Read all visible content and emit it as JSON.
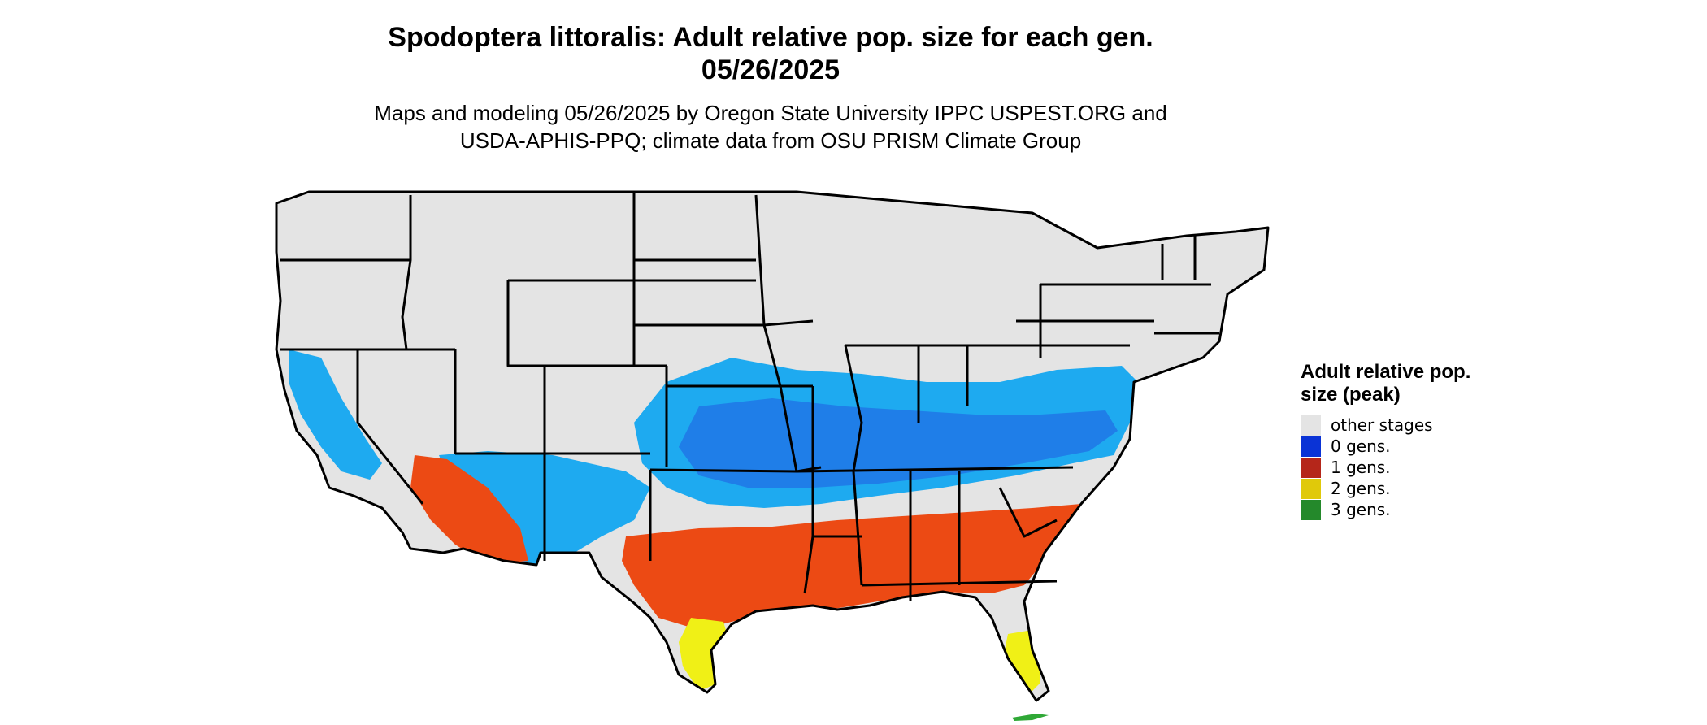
{
  "header": {
    "title_line1": "Spodoptera littoralis: Adult relative pop. size for each gen.",
    "title_line2": "05/26/2025",
    "subtitle_line1": "Maps and modeling 05/26/2025 by Oregon State University IPPC USPEST.ORG and",
    "subtitle_line2": "USDA-APHIS-PPQ; climate data from OSU PRISM Climate Group"
  },
  "legend": {
    "title": "Adult relative pop. size (peak)",
    "items": [
      {
        "label": "other stages",
        "color": "#e4e4e4"
      },
      {
        "label": "0 gens.",
        "color": "#0a33d6"
      },
      {
        "label": "1 gens.",
        "color": "#b5261a"
      },
      {
        "label": "2 gens.",
        "color": "#e0c90a"
      },
      {
        "label": "3 gens.",
        "color": "#24892b"
      }
    ]
  },
  "map_colors": {
    "base": "#e4e4e4",
    "zone_light_blue": "#1eaaf0",
    "zone_blue": "#1f7ee8",
    "zone_orange": "#ec4a14",
    "zone_yellow": "#f0f016",
    "zone_green": "#2fa836",
    "border": "#000000"
  }
}
